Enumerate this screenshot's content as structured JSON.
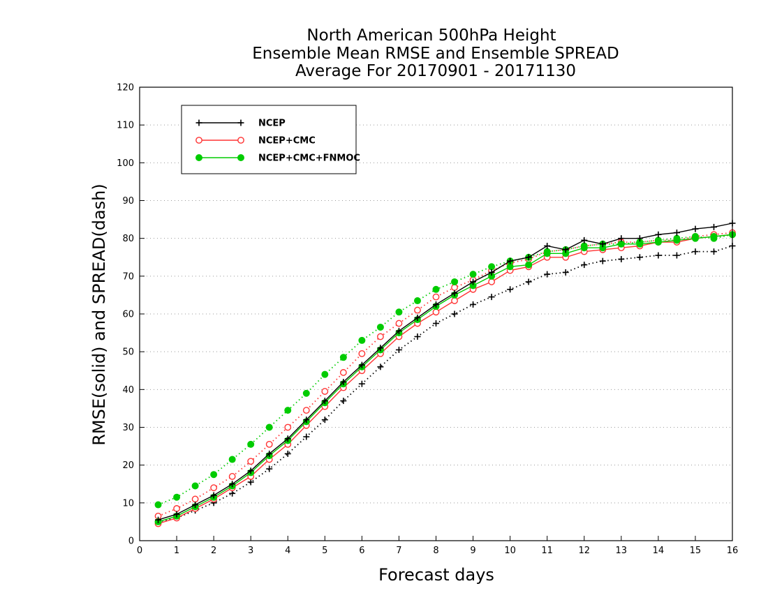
{
  "chart_data": {
    "type": "line",
    "title": [
      "North American 500hPa Height",
      "Ensemble Mean RMSE and Ensemble SPREAD",
      "Average For 20170901 - 20171130"
    ],
    "xlabel": "Forecast days",
    "ylabel": "RMSE(solid) and SPREAD(dash)",
    "xlim": [
      0,
      16
    ],
    "ylim": [
      0,
      120
    ],
    "xticks": [
      0,
      1,
      2,
      3,
      4,
      5,
      6,
      7,
      8,
      9,
      10,
      11,
      12,
      13,
      14,
      15,
      16
    ],
    "yticks": [
      0,
      10,
      20,
      30,
      40,
      50,
      60,
      70,
      80,
      90,
      100,
      110,
      120
    ],
    "grid": "horizontal dotted",
    "legend_position": "top-left",
    "x": [
      0.5,
      1,
      1.5,
      2,
      2.5,
      3,
      3.5,
      4,
      4.5,
      5,
      5.5,
      6,
      6.5,
      7,
      7.5,
      8,
      8.5,
      9,
      9.5,
      10,
      10.5,
      11,
      11.5,
      12,
      12.5,
      13,
      13.5,
      14,
      14.5,
      15,
      15.5,
      16
    ],
    "series": [
      {
        "name": "NCEP",
        "style": "solid",
        "marker": "plus",
        "color": "#000000",
        "values": [
          5.5,
          7,
          9.5,
          12,
          15,
          18.5,
          23,
          27,
          32,
          37,
          42,
          46.5,
          51,
          55.5,
          59,
          62.5,
          65.5,
          68.5,
          71,
          74,
          75,
          78,
          77,
          79.5,
          78.5,
          80,
          80,
          81,
          81.5,
          82.5,
          83,
          84
        ]
      },
      {
        "name": "NCEP+CMC",
        "style": "solid",
        "marker": "open-circle",
        "color": "#ff3333",
        "values": [
          4.5,
          6,
          8.5,
          11,
          14,
          17,
          21.5,
          25.5,
          30.5,
          35.5,
          40.5,
          45,
          49.5,
          54,
          57.5,
          60.5,
          63.5,
          66.5,
          68.5,
          71.5,
          72.5,
          75,
          75,
          76.5,
          77,
          77.5,
          78,
          79,
          79,
          80,
          80.5,
          81
        ]
      },
      {
        "name": "NCEP+CMC+FNMOC",
        "style": "solid",
        "marker": "filled-circle",
        "color": "#00cc00",
        "values": [
          5,
          6.5,
          9,
          11.5,
          14.5,
          18,
          22.5,
          26.5,
          31.5,
          36.5,
          41.5,
          46,
          50.5,
          55,
          58.5,
          62,
          65,
          67.5,
          70,
          72.5,
          73,
          76,
          76,
          77.5,
          77.5,
          78.5,
          78.5,
          79,
          79.5,
          80,
          80.5,
          81
        ]
      },
      {
        "name": "NCEP",
        "style": "dotted",
        "marker": "plus",
        "color": "#000000",
        "values": [
          5,
          6,
          8,
          10,
          12.5,
          15.5,
          19,
          23,
          27.5,
          32,
          37,
          41.5,
          46,
          50.5,
          54,
          57.5,
          60,
          62.5,
          64.5,
          66.5,
          68.5,
          70.5,
          71,
          73,
          74,
          74.5,
          75,
          75.5,
          75.5,
          76.5,
          76.5,
          78
        ]
      },
      {
        "name": "NCEP+CMC",
        "style": "dotted",
        "marker": "open-circle",
        "color": "#ff3333",
        "values": [
          6.5,
          8.5,
          11,
          14,
          17,
          21,
          25.5,
          30,
          34.5,
          39.5,
          44.5,
          49.5,
          54,
          57.5,
          61,
          64.5,
          67,
          69,
          71.5,
          73.5,
          74.5,
          76.5,
          77,
          78,
          78.5,
          79,
          79,
          79.5,
          79.5,
          80.5,
          81,
          81.5
        ]
      },
      {
        "name": "NCEP+CMC+FNMOC",
        "style": "dotted",
        "marker": "filled-circle",
        "color": "#00cc00",
        "values": [
          9.5,
          11.5,
          14.5,
          17.5,
          21.5,
          25.5,
          30,
          34.5,
          39,
          44,
          48.5,
          53,
          56.5,
          60.5,
          63.5,
          66.5,
          68.5,
          70.5,
          72.5,
          74,
          75,
          76.5,
          77,
          78,
          78.5,
          78.5,
          79,
          79.5,
          80,
          80.5,
          80,
          81
        ]
      }
    ],
    "legend": [
      {
        "label": "NCEP",
        "marker": "plus",
        "color": "#000000"
      },
      {
        "label": "NCEP+CMC",
        "marker": "open-circle",
        "color": "#ff3333"
      },
      {
        "label": "NCEP+CMC+FNMOC",
        "marker": "filled-circle",
        "color": "#00cc00"
      }
    ]
  }
}
